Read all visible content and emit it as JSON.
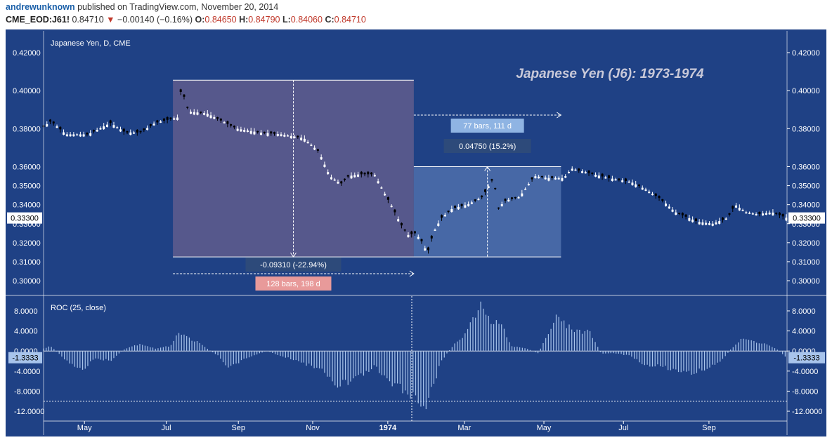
{
  "header": {
    "author": "andrewunknown",
    "published": "published on TradingView.com, November 20, 2014",
    "symbol": "CME_EOD:J61!",
    "last": "0.84710",
    "change_arrow": "▼",
    "change": "−0.00140 (−0.16%)",
    "o_label": "O:",
    "o_value": "0.84650",
    "h_label": "H:",
    "h_value": "0.84790",
    "l_label": "L:",
    "l_value": "0.84060",
    "c_label": "C:",
    "c_value": "0.84710"
  },
  "colors": {
    "background": "#1f4185",
    "candle_up": "#ffffff",
    "candle_down": "#000000",
    "range_down_fill": "#5a5a8c",
    "range_up_fill": "#4a6aa8",
    "label_red": "#e89a9a",
    "label_blue": "#8fb4e3",
    "label_dark": "#2d4a7a",
    "roc_bars": "#a8c4ec"
  },
  "chart_data": [
    {
      "type": "candlestick",
      "title": "Japanese Yen, D, CME",
      "annotation": "Japanese Yen (J6): 1973-1974",
      "ylim": [
        0.292,
        0.427
      ],
      "y_ticks": [
        "0.42000",
        "0.40000",
        "0.38000",
        "0.36000",
        "0.35000",
        "0.34000",
        "0.33000",
        "0.32000",
        "0.31000",
        "0.30000"
      ],
      "last_price_label": "0.33300",
      "x_ticks": [
        "May",
        "Jul",
        "Sep",
        "Nov",
        "1974",
        "Mar",
        "May",
        "Jul",
        "Sep"
      ],
      "close_series": [
        {
          "t": 0.0,
          "v": 0.381
        },
        {
          "t": 0.01,
          "v": 0.384
        },
        {
          "t": 0.03,
          "v": 0.377
        },
        {
          "t": 0.06,
          "v": 0.377
        },
        {
          "t": 0.09,
          "v": 0.383
        },
        {
          "t": 0.11,
          "v": 0.378
        },
        {
          "t": 0.13,
          "v": 0.378
        },
        {
          "t": 0.15,
          "v": 0.383
        },
        {
          "t": 0.17,
          "v": 0.385
        },
        {
          "t": 0.182,
          "v": 0.386
        },
        {
          "t": 0.185,
          "v": 0.402
        },
        {
          "t": 0.195,
          "v": 0.389
        },
        {
          "t": 0.22,
          "v": 0.388
        },
        {
          "t": 0.24,
          "v": 0.384
        },
        {
          "t": 0.26,
          "v": 0.38
        },
        {
          "t": 0.29,
          "v": 0.378
        },
        {
          "t": 0.32,
          "v": 0.377
        },
        {
          "t": 0.35,
          "v": 0.375
        },
        {
          "t": 0.37,
          "v": 0.368
        },
        {
          "t": 0.385,
          "v": 0.355
        },
        {
          "t": 0.4,
          "v": 0.351
        },
        {
          "t": 0.41,
          "v": 0.355
        },
        {
          "t": 0.425,
          "v": 0.356
        },
        {
          "t": 0.445,
          "v": 0.356
        },
        {
          "t": 0.46,
          "v": 0.345
        },
        {
          "t": 0.47,
          "v": 0.338
        },
        {
          "t": 0.48,
          "v": 0.33
        },
        {
          "t": 0.49,
          "v": 0.324
        },
        {
          "t": 0.5,
          "v": 0.325
        },
        {
          "t": 0.51,
          "v": 0.32
        },
        {
          "t": 0.516,
          "v": 0.314
        },
        {
          "t": 0.524,
          "v": 0.325
        },
        {
          "t": 0.535,
          "v": 0.333
        },
        {
          "t": 0.55,
          "v": 0.338
        },
        {
          "t": 0.57,
          "v": 0.34
        },
        {
          "t": 0.59,
          "v": 0.344
        },
        {
          "t": 0.605,
          "v": 0.354
        },
        {
          "t": 0.612,
          "v": 0.338
        },
        {
          "t": 0.62,
          "v": 0.342
        },
        {
          "t": 0.64,
          "v": 0.344
        },
        {
          "t": 0.66,
          "v": 0.355
        },
        {
          "t": 0.68,
          "v": 0.354
        },
        {
          "t": 0.7,
          "v": 0.354
        },
        {
          "t": 0.71,
          "v": 0.359
        },
        {
          "t": 0.73,
          "v": 0.357
        },
        {
          "t": 0.76,
          "v": 0.354
        },
        {
          "t": 0.79,
          "v": 0.352
        },
        {
          "t": 0.81,
          "v": 0.348
        },
        {
          "t": 0.83,
          "v": 0.343
        },
        {
          "t": 0.85,
          "v": 0.336
        },
        {
          "t": 0.88,
          "v": 0.331
        },
        {
          "t": 0.9,
          "v": 0.33
        },
        {
          "t": 0.92,
          "v": 0.333
        },
        {
          "t": 0.93,
          "v": 0.34
        },
        {
          "t": 0.945,
          "v": 0.336
        },
        {
          "t": 0.96,
          "v": 0.335
        },
        {
          "t": 0.98,
          "v": 0.336
        },
        {
          "t": 1.0,
          "v": 0.333
        }
      ],
      "measurements": [
        {
          "change": "-0.09310 (-22.94%)",
          "span": "128 bars, 198 d",
          "from": 0.4055,
          "to": 0.3125
        },
        {
          "change": "0.04750 (15.2%)",
          "span": "77 bars, 111 d",
          "from": 0.3125,
          "to": 0.36
        }
      ]
    },
    {
      "type": "bar",
      "title": "ROC (25, close)",
      "ylim": [
        -14.5,
        10.5
      ],
      "y_ticks": [
        "8.0000",
        "4.0000",
        "0.0000",
        "-4.0000",
        "-8.0000",
        "-12.0000"
      ],
      "last_value_label": "-1.3333",
      "reference_line": -10,
      "envelope": [
        {
          "t": 0.0,
          "v": 0.5
        },
        {
          "t": 0.01,
          "v": 1.0
        },
        {
          "t": 0.03,
          "v": -2.0
        },
        {
          "t": 0.05,
          "v": -4.0
        },
        {
          "t": 0.07,
          "v": -1.5
        },
        {
          "t": 0.09,
          "v": -2.0
        },
        {
          "t": 0.11,
          "v": 0.5
        },
        {
          "t": 0.13,
          "v": 1.5
        },
        {
          "t": 0.15,
          "v": 0.5
        },
        {
          "t": 0.17,
          "v": 1.0
        },
        {
          "t": 0.182,
          "v": 4.0
        },
        {
          "t": 0.19,
          "v": 3.0
        },
        {
          "t": 0.205,
          "v": 2.0
        },
        {
          "t": 0.22,
          "v": 0.5
        },
        {
          "t": 0.235,
          "v": -1.0
        },
        {
          "t": 0.25,
          "v": -3.5
        },
        {
          "t": 0.27,
          "v": -1.5
        },
        {
          "t": 0.3,
          "v": 0.0
        },
        {
          "t": 0.32,
          "v": -1.0
        },
        {
          "t": 0.34,
          "v": -2.0
        },
        {
          "t": 0.36,
          "v": -3.0
        },
        {
          "t": 0.375,
          "v": -4.0
        },
        {
          "t": 0.39,
          "v": -7.0
        },
        {
          "t": 0.41,
          "v": -6.5
        },
        {
          "t": 0.43,
          "v": -5.0
        },
        {
          "t": 0.445,
          "v": -3.0
        },
        {
          "t": 0.46,
          "v": -6.0
        },
        {
          "t": 0.475,
          "v": -7.0
        },
        {
          "t": 0.49,
          "v": -8.5
        },
        {
          "t": 0.505,
          "v": -10.0
        },
        {
          "t": 0.514,
          "v": -12.5
        },
        {
          "t": 0.522,
          "v": -8.0
        },
        {
          "t": 0.535,
          "v": -2.0
        },
        {
          "t": 0.55,
          "v": 1.0
        },
        {
          "t": 0.565,
          "v": 3.0
        },
        {
          "t": 0.58,
          "v": 7.0
        },
        {
          "t": 0.59,
          "v": 9.5
        },
        {
          "t": 0.6,
          "v": 6.0
        },
        {
          "t": 0.615,
          "v": 5.5
        },
        {
          "t": 0.63,
          "v": 1.0
        },
        {
          "t": 0.65,
          "v": 0.5
        },
        {
          "t": 0.665,
          "v": -0.5
        },
        {
          "t": 0.68,
          "v": 4.0
        },
        {
          "t": 0.69,
          "v": 7.0
        },
        {
          "t": 0.705,
          "v": 5.0
        },
        {
          "t": 0.72,
          "v": 4.0
        },
        {
          "t": 0.735,
          "v": 4.0
        },
        {
          "t": 0.75,
          "v": -0.5
        },
        {
          "t": 0.77,
          "v": -0.5
        },
        {
          "t": 0.79,
          "v": -1.0
        },
        {
          "t": 0.81,
          "v": -3.0
        },
        {
          "t": 0.83,
          "v": -3.0
        },
        {
          "t": 0.85,
          "v": -4.0
        },
        {
          "t": 0.87,
          "v": -4.5
        },
        {
          "t": 0.89,
          "v": -3.5
        },
        {
          "t": 0.91,
          "v": -2.5
        },
        {
          "t": 0.925,
          "v": 0.5
        },
        {
          "t": 0.94,
          "v": 2.5
        },
        {
          "t": 0.955,
          "v": 2.0
        },
        {
          "t": 0.97,
          "v": 1.5
        },
        {
          "t": 0.985,
          "v": 0.5
        },
        {
          "t": 1.0,
          "v": -1.3
        }
      ]
    }
  ]
}
